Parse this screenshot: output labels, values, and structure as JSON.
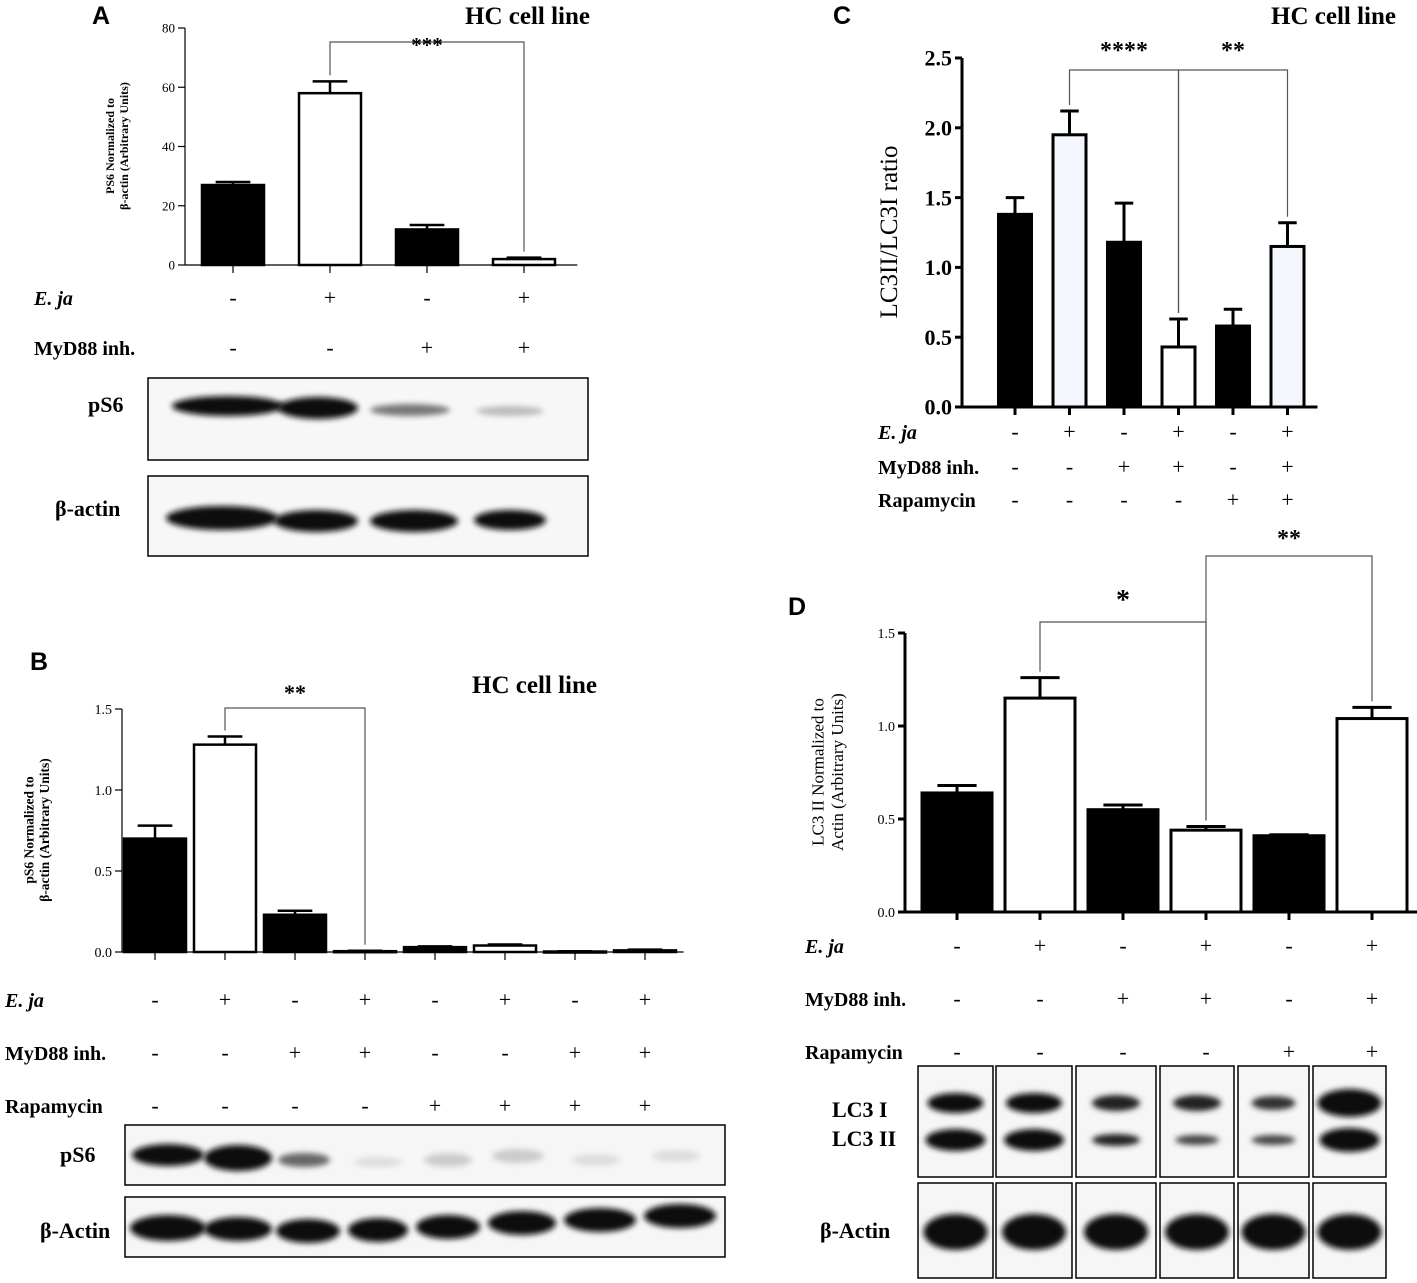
{
  "panels": {
    "A": {
      "letter": "A",
      "title": "HC cell line"
    },
    "B": {
      "letter": "B",
      "title": "HC cell line"
    },
    "C": {
      "letter": "C",
      "title": "HC cell line"
    },
    "D": {
      "letter": "D",
      "title": ""
    }
  },
  "condition_labels": {
    "eja": "E. ja",
    "myd88": "MyD88 inh.",
    "rapamycin": "Rapamycin"
  },
  "blot_labels": {
    "A": [
      "pS6",
      "β-actin"
    ],
    "B": [
      "pS6",
      "β-Actin"
    ],
    "D": [
      "LC3 I",
      "LC3 II",
      "β-Actin"
    ]
  },
  "colors": {
    "filled": "#000000",
    "open": "#ffffff",
    "light_open": "#f3f6fc",
    "line": "#000000"
  },
  "chart_data": [
    {
      "panel": "A",
      "type": "bar",
      "title": "HC cell line",
      "ylabel": "PS6 Normalized to β-actin (Arbitrary Units)",
      "xlabel": "",
      "ylim": [
        0,
        80
      ],
      "yticks": [
        "0",
        "20",
        "40",
        "60",
        "80"
      ],
      "values": [
        27,
        58,
        12,
        2
      ],
      "errors": [
        1,
        4,
        1.5,
        0.5
      ],
      "fills": [
        "filled",
        "open",
        "filled",
        "open"
      ],
      "conditions": {
        "eja": [
          "-",
          "+",
          "-",
          "+"
        ],
        "myd88": [
          "-",
          "-",
          "+",
          "+"
        ]
      },
      "significance": [
        {
          "from": 1,
          "to": 3,
          "label": "***"
        }
      ]
    },
    {
      "panel": "B",
      "type": "bar",
      "title": "HC cell line",
      "ylabel": "pS6 Normalized to β-actin (Arbitrary Units)",
      "xlabel": "",
      "ylim": [
        0,
        1.5
      ],
      "yticks": [
        "0.0",
        "0.5",
        "1.0",
        "1.5"
      ],
      "values": [
        0.7,
        1.28,
        0.23,
        0.005,
        0.03,
        0.04,
        0.003,
        0.01
      ],
      "errors": [
        0.08,
        0.05,
        0.025,
        0.003,
        0.005,
        0.006,
        0.002,
        0.005
      ],
      "fills": [
        "filled",
        "open",
        "filled",
        "open",
        "filled",
        "open",
        "filled",
        "open"
      ],
      "conditions": {
        "eja": [
          "-",
          "+",
          "-",
          "+",
          "-",
          "+",
          "-",
          "+"
        ],
        "myd88": [
          "-",
          "-",
          "+",
          "+",
          "-",
          "-",
          "+",
          "+"
        ],
        "rapamycin": [
          "-",
          "-",
          "-",
          "-",
          "+",
          "+",
          "+",
          "+"
        ]
      },
      "significance": [
        {
          "from": 1,
          "to": 3,
          "label": "**"
        }
      ]
    },
    {
      "panel": "C",
      "type": "bar",
      "title": "HC cell line",
      "ylabel": "LC3II/LC3I ratio",
      "xlabel": "",
      "ylim": [
        0,
        2.5
      ],
      "yticks": [
        "0.0",
        "0.5",
        "1.0",
        "1.5",
        "2.0",
        "2.5"
      ],
      "values": [
        1.38,
        1.95,
        1.18,
        0.43,
        0.58,
        1.15
      ],
      "errors": [
        0.12,
        0.17,
        0.28,
        0.2,
        0.12,
        0.17
      ],
      "fills": [
        "filled",
        "light_open",
        "filled",
        "open",
        "filled",
        "light_open"
      ],
      "conditions": {
        "eja": [
          "-",
          "+",
          "-",
          "+",
          "-",
          "+"
        ],
        "myd88": [
          "-",
          "-",
          "+",
          "+",
          "-",
          "+"
        ],
        "rapamycin": [
          "-",
          "-",
          "-",
          "-",
          "+",
          "+"
        ]
      },
      "significance": [
        {
          "from": 1,
          "to": 3,
          "label": "****"
        },
        {
          "from": 3,
          "to": 5,
          "label": "**"
        }
      ]
    },
    {
      "panel": "D",
      "type": "bar",
      "title": "",
      "ylabel": "LC3 II Normalized to Actin (Arbitrary Units)",
      "xlabel": "",
      "ylim": [
        0,
        1.5
      ],
      "yticks": [
        "0.0",
        "0.5",
        "1.0",
        "1.5"
      ],
      "values": [
        0.64,
        1.15,
        0.55,
        0.44,
        0.41,
        1.04
      ],
      "errors": [
        0.04,
        0.11,
        0.025,
        0.02,
        0.005,
        0.06
      ],
      "fills": [
        "filled",
        "open",
        "filled",
        "open",
        "filled",
        "open"
      ],
      "conditions": {
        "eja": [
          "-",
          "+",
          "-",
          "+",
          "-",
          "+"
        ],
        "myd88": [
          "-",
          "-",
          "+",
          "+",
          "-",
          "+"
        ],
        "rapamycin": [
          "-",
          "-",
          "-",
          "-",
          "+",
          "+"
        ]
      },
      "significance": [
        {
          "from": 1,
          "to": 3,
          "label": "*"
        },
        {
          "from": 3,
          "to": 5,
          "label": "**"
        }
      ]
    }
  ]
}
